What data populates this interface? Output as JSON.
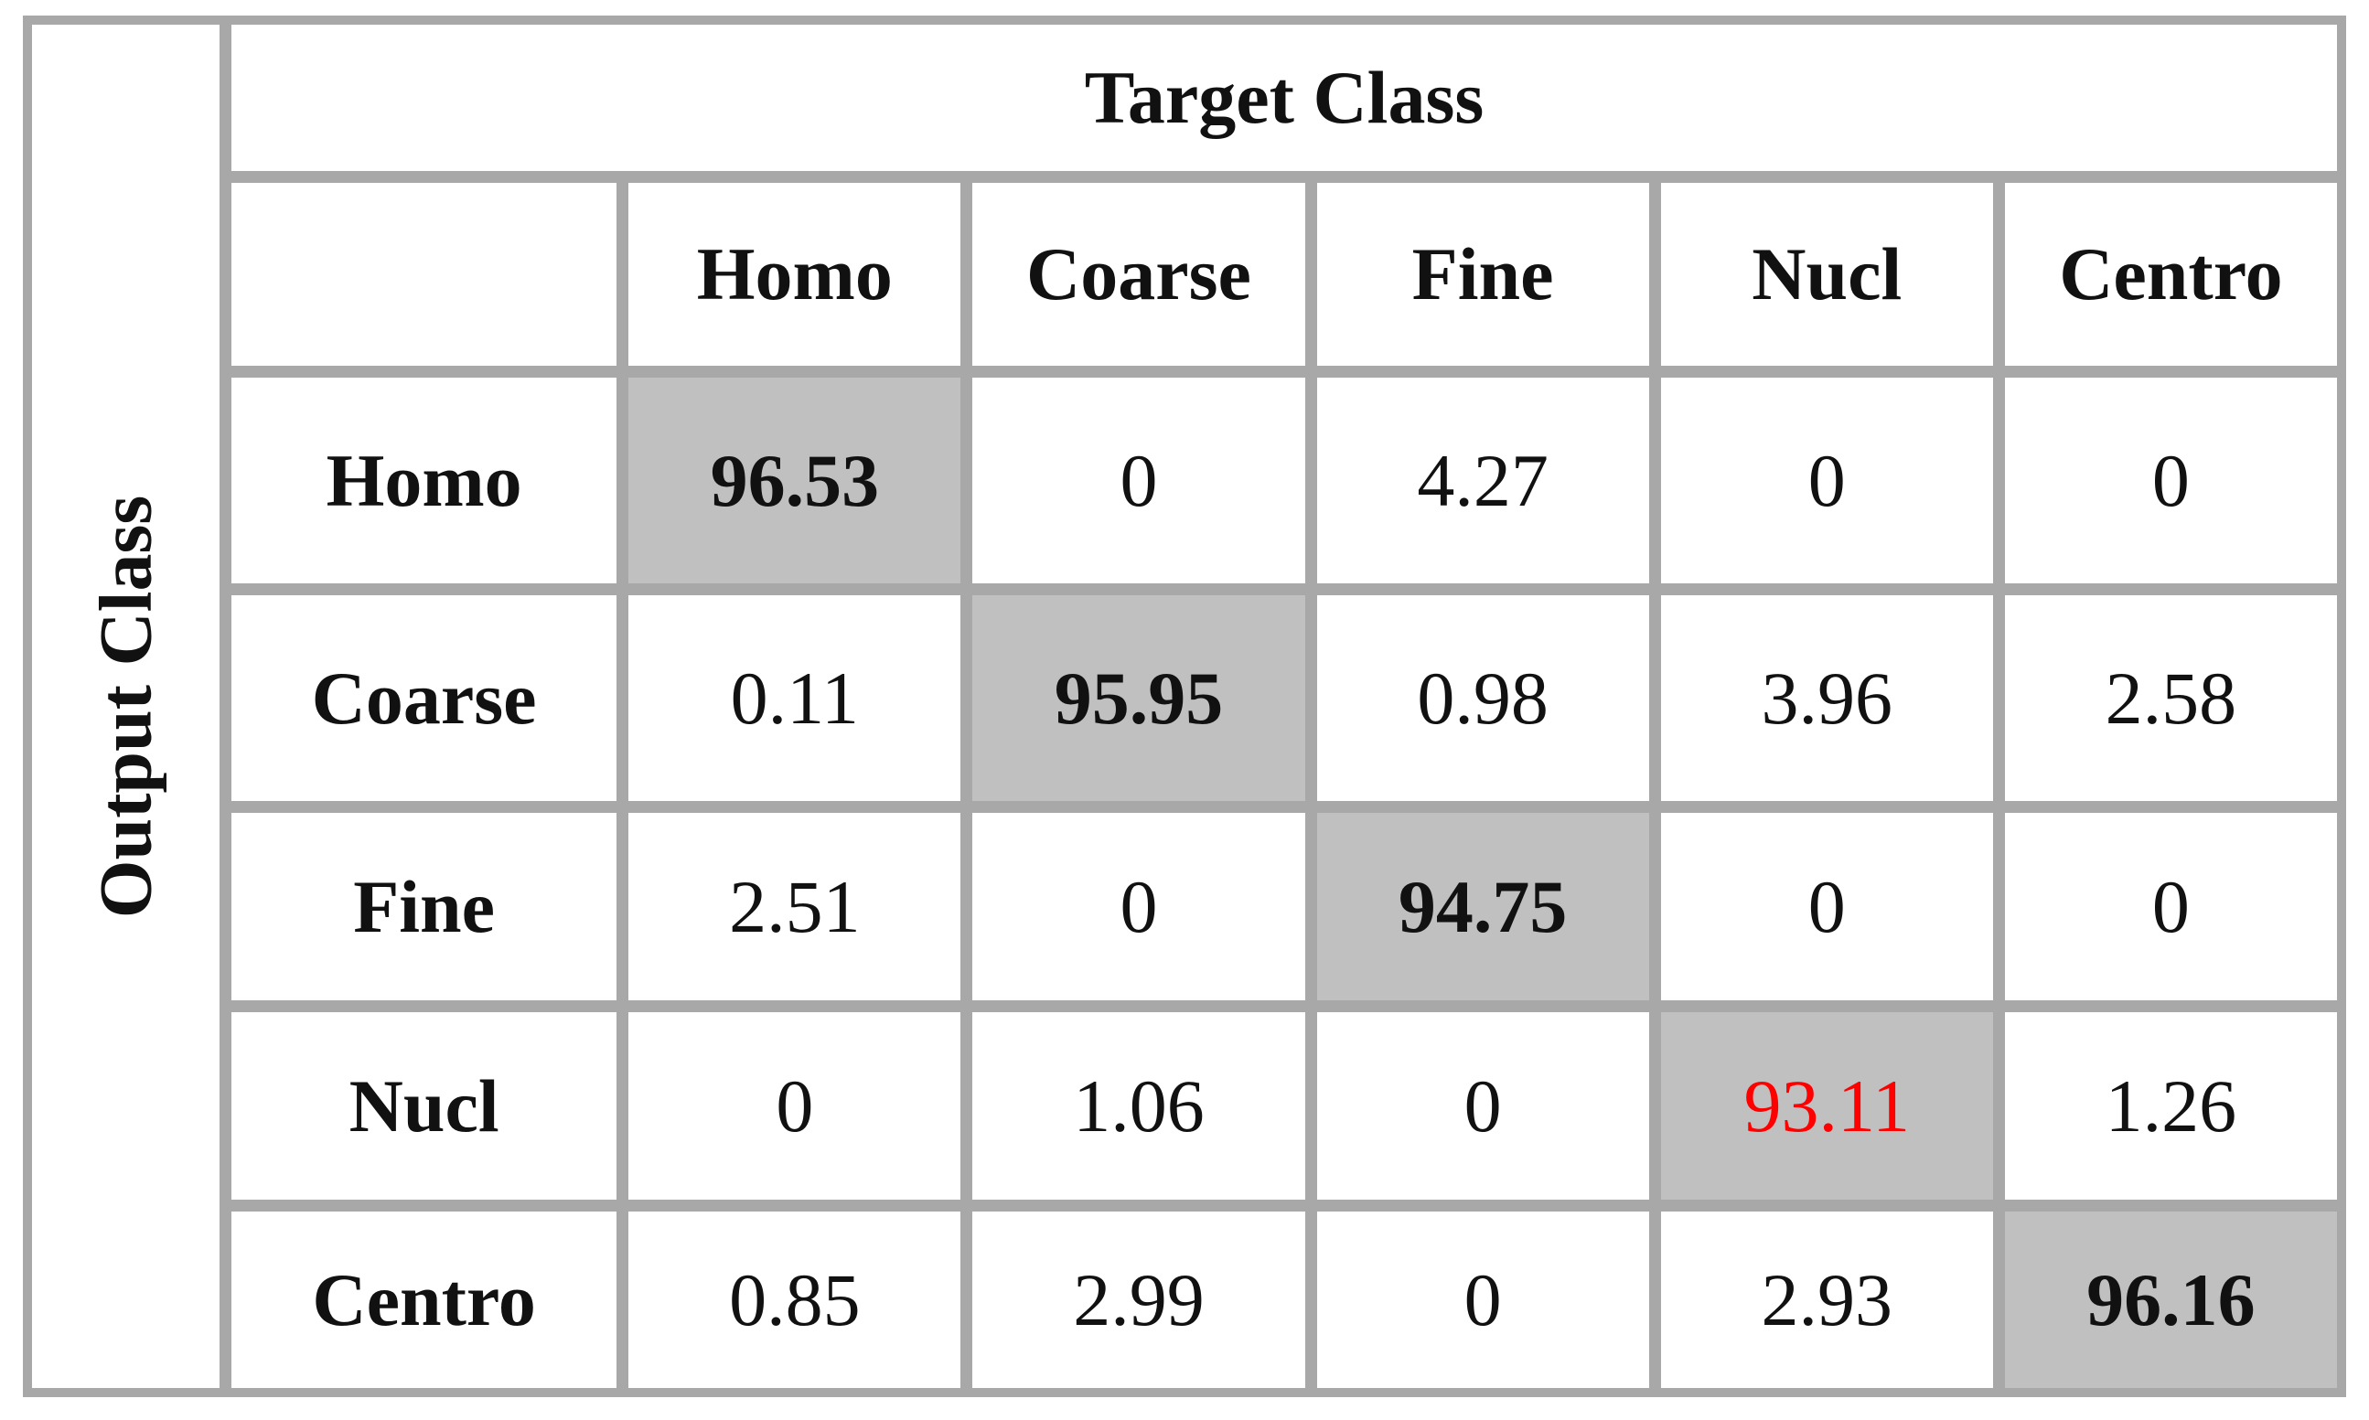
{
  "table": {
    "row_axis_title": "Output Class",
    "column_axis_title": "Target Class",
    "columns": [
      "Homo",
      "Coarse",
      "Fine",
      "Nucl",
      "Centro"
    ],
    "rows": [
      {
        "label": "Homo",
        "values": [
          96.53,
          0,
          4.27,
          0,
          0
        ]
      },
      {
        "label": "Coarse",
        "values": [
          0.11,
          95.95,
          0.98,
          3.96,
          2.58
        ]
      },
      {
        "label": "Fine",
        "values": [
          2.51,
          0,
          94.75,
          0,
          0
        ]
      },
      {
        "label": "Nucl",
        "values": [
          0,
          1.06,
          0,
          93.11,
          1.26
        ]
      },
      {
        "label": "Centro",
        "values": [
          0.85,
          2.99,
          0,
          2.93,
          96.16
        ]
      }
    ]
  }
}
